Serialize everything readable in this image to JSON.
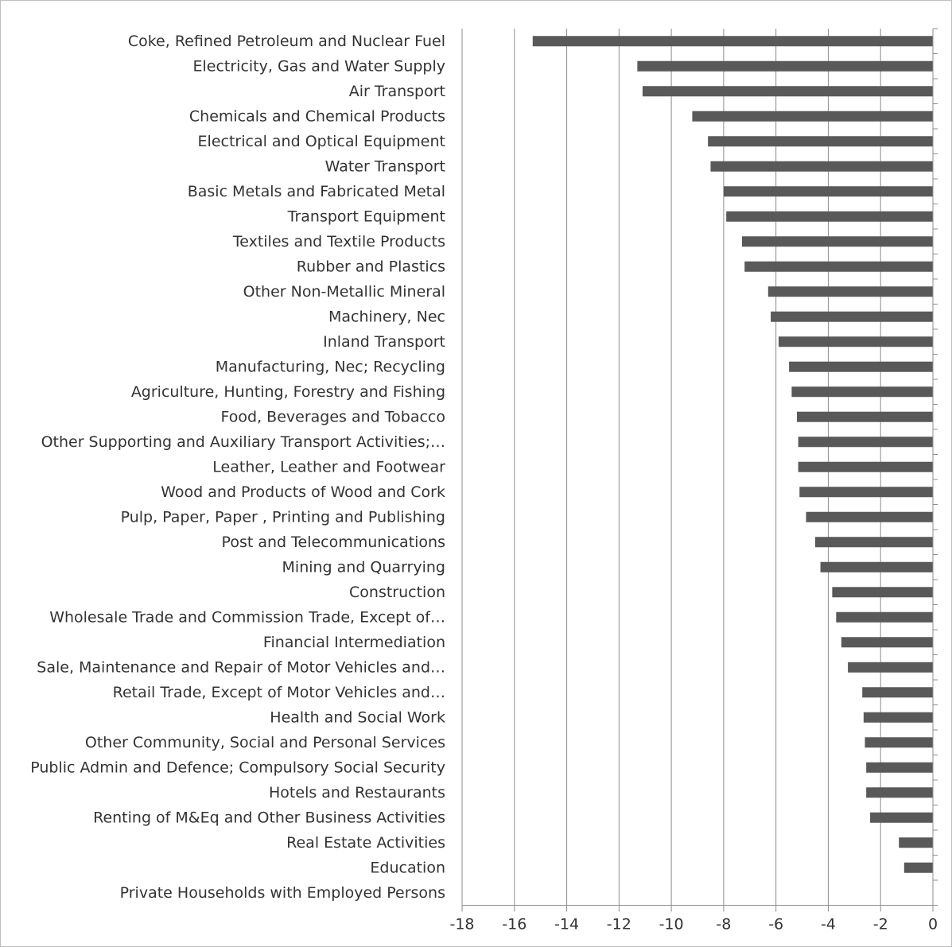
{
  "chart_data": {
    "type": "bar",
    "orientation": "horizontal",
    "title": "",
    "xlabel": "",
    "ylabel": "",
    "xlim": [
      -18,
      0
    ],
    "xticks": [
      -18,
      -16,
      -14,
      -12,
      -10,
      -8,
      -6,
      -4,
      -2,
      0
    ],
    "grid": "vertical",
    "bar_color": "#595959",
    "grid_color": "#8c8c8c",
    "categories": [
      "Coke, Refined Petroleum and Nuclear Fuel",
      "Electricity, Gas and Water Supply",
      "Air Transport",
      "Chemicals and Chemical Products",
      "Electrical and Optical Equipment",
      "Water Transport",
      "Basic Metals and Fabricated Metal",
      "Transport Equipment",
      "Textiles and Textile Products",
      "Rubber and Plastics",
      "Other Non-Metallic Mineral",
      "Machinery, Nec",
      "Inland Transport",
      "Manufacturing, Nec; Recycling",
      "Agriculture, Hunting, Forestry and Fishing",
      "Food, Beverages and Tobacco",
      "Other Supporting and Auxiliary Transport Activities;…",
      "Leather, Leather and Footwear",
      "Wood and Products of Wood and Cork",
      "Pulp, Paper, Paper , Printing and Publishing",
      "Post and Telecommunications",
      "Mining and Quarrying",
      "Construction",
      "Wholesale Trade and Commission Trade, Except of…",
      "Financial Intermediation",
      "Sale, Maintenance and Repair of Motor Vehicles and…",
      "Retail Trade, Except of Motor Vehicles and…",
      "Health and Social Work",
      "Other Community, Social and Personal Services",
      "Public Admin and Defence; Compulsory Social Security",
      "Hotels and Restaurants",
      "Renting of M&Eq and Other Business Activities",
      "Real Estate Activities",
      "Education",
      "Private Households with Employed Persons"
    ],
    "values": [
      -15.3,
      -11.3,
      -11.1,
      -9.2,
      -8.6,
      -8.5,
      -8.0,
      -7.9,
      -7.3,
      -7.2,
      -6.3,
      -6.2,
      -5.9,
      -5.5,
      -5.4,
      -5.2,
      -5.15,
      -5.15,
      -5.1,
      -4.85,
      -4.5,
      -4.3,
      -3.85,
      -3.7,
      -3.5,
      -3.25,
      -2.7,
      -2.65,
      -2.6,
      -2.55,
      -2.55,
      -2.4,
      -1.3,
      -1.1,
      0
    ]
  }
}
